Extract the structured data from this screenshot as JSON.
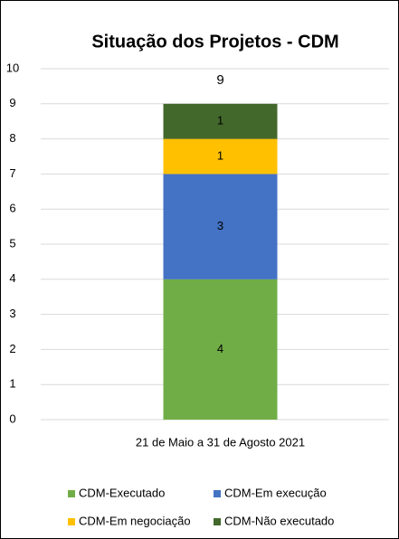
{
  "chart_data": {
    "type": "stacked_bar",
    "title": "Situação dos Projetos - CDM",
    "categories": [
      "21 de Maio a 31 de Agosto 2021"
    ],
    "series": [
      {
        "name": "CDM-Executado",
        "color": "#70ad47",
        "values": [
          4
        ]
      },
      {
        "name": "CDM-Em execução",
        "color": "#4472c4",
        "values": [
          3
        ]
      },
      {
        "name": "CDM-Em negociação",
        "color": "#ffc000",
        "values": [
          1
        ]
      },
      {
        "name": "CDM-Não executado",
        "color": "#43682b",
        "values": [
          1
        ]
      }
    ],
    "totals": [
      9
    ],
    "ylim": [
      0,
      10
    ],
    "yticks": [
      0,
      1,
      2,
      3,
      4,
      5,
      6,
      7,
      8,
      9,
      10
    ],
    "grid": true,
    "legend": "bottom"
  }
}
